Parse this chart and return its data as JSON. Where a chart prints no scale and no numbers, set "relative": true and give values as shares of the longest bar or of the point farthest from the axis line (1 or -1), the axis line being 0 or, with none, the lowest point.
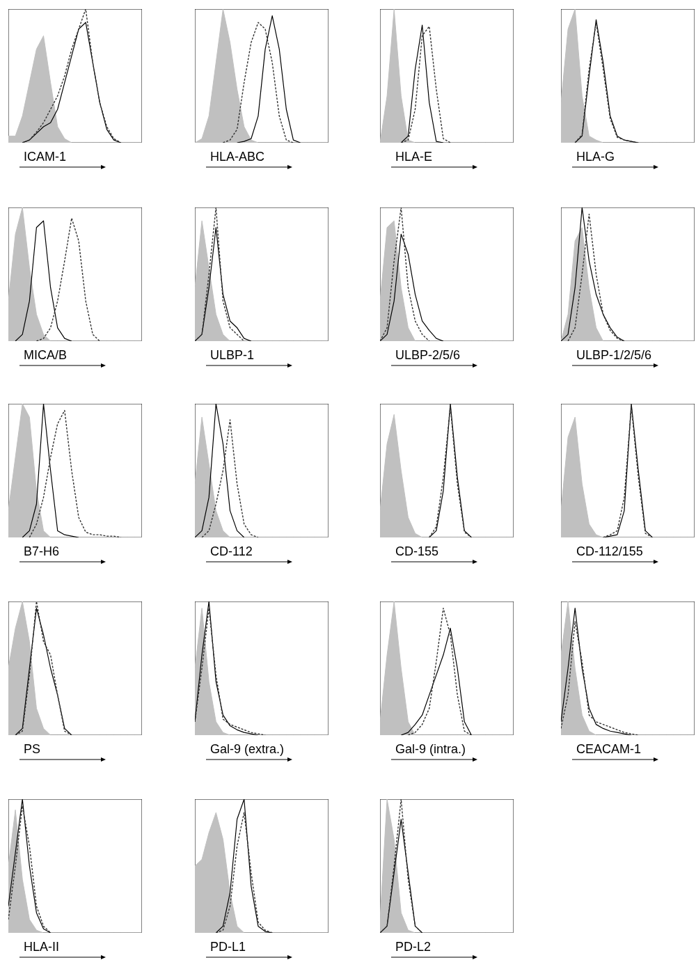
{
  "chart_data": [
    {
      "type": "line",
      "xlabel": "ICAM-1",
      "relative": true,
      "marker": "none",
      "categories": [
        null,
        null,
        null,
        null,
        null,
        null,
        null,
        null,
        null,
        null,
        null,
        null,
        null,
        null,
        null,
        null,
        null,
        null,
        null,
        null
      ],
      "series": [
        {
          "type": "area",
          "color": "#c0c0c0",
          "values": [
            0.05,
            0.05,
            0.2,
            0.45,
            0.7,
            0.8,
            0.45,
            0.12,
            0.03,
            0,
            0,
            0,
            0,
            0,
            0,
            0,
            0,
            0,
            0,
            0
          ]
        },
        {
          "type": "line",
          "color": "#000000",
          "line_style": "solid",
          "values": [
            null,
            null,
            0,
            0.02,
            0.07,
            0.12,
            0.15,
            0.25,
            0.45,
            0.65,
            0.85,
            0.9,
            0.6,
            0.3,
            0.1,
            0.02,
            0,
            null,
            null,
            null
          ]
        },
        {
          "type": "line",
          "color": "#333333",
          "line_style": "dashed",
          "values": [
            null,
            null,
            0,
            0.02,
            0.08,
            0.15,
            0.25,
            0.35,
            0.5,
            0.7,
            0.85,
            1,
            0.6,
            0.3,
            0.12,
            0.03,
            0,
            null,
            null,
            null
          ]
        }
      ]
    },
    {
      "type": "line",
      "xlabel": "HLA-ABC",
      "relative": true,
      "marker": "none",
      "categories": [
        null,
        null,
        null,
        null,
        null,
        null,
        null,
        null,
        null,
        null,
        null,
        null,
        null,
        null,
        null,
        null,
        null,
        null,
        null,
        null
      ],
      "series": [
        {
          "type": "area",
          "color": "#c0c0c0",
          "values": [
            0,
            0.03,
            0.2,
            0.6,
            1,
            0.75,
            0.4,
            0.12,
            0.02,
            0,
            0,
            0,
            0,
            0,
            0,
            0,
            0,
            0,
            0,
            0
          ]
        },
        {
          "type": "line",
          "color": "#000000",
          "line_style": "solid",
          "values": [
            null,
            null,
            null,
            null,
            null,
            null,
            0,
            0.01,
            0.03,
            0.2,
            0.7,
            0.95,
            0.7,
            0.25,
            0.02,
            0,
            null,
            null,
            null,
            null
          ]
        },
        {
          "type": "line",
          "color": "#333333",
          "line_style": "dashed",
          "values": [
            null,
            null,
            null,
            null,
            0,
            0.02,
            0.1,
            0.45,
            0.75,
            0.9,
            0.85,
            0.6,
            0.2,
            0.02,
            0,
            null,
            null,
            null,
            null,
            null
          ]
        }
      ]
    },
    {
      "type": "line",
      "xlabel": "HLA-E",
      "relative": true,
      "marker": "none",
      "categories": [
        null,
        null,
        null,
        null,
        null,
        null,
        null,
        null,
        null,
        null,
        null,
        null,
        null,
        null,
        null,
        null,
        null,
        null,
        null,
        null
      ],
      "series": [
        {
          "type": "area",
          "color": "#c0c0c0",
          "values": [
            0,
            0.35,
            1,
            0.35,
            0.02,
            0,
            0,
            0,
            0,
            0,
            0,
            0,
            0,
            0,
            0,
            0,
            0,
            0,
            0,
            0
          ]
        },
        {
          "type": "line",
          "color": "#000000",
          "line_style": "solid",
          "values": [
            null,
            null,
            null,
            0,
            0.05,
            0.55,
            0.88,
            0.3,
            0.01,
            0,
            null,
            null,
            null,
            null,
            null,
            null,
            null,
            null,
            null,
            null
          ]
        },
        {
          "type": "line",
          "color": "#333333",
          "line_style": "dashed",
          "values": [
            null,
            null,
            null,
            0,
            0.02,
            0.25,
            0.8,
            0.87,
            0.4,
            0.03,
            0,
            null,
            null,
            null,
            null,
            null,
            null,
            null,
            null,
            null
          ]
        }
      ]
    },
    {
      "type": "line",
      "xlabel": "HLA-G",
      "relative": true,
      "marker": "none",
      "categories": [
        null,
        null,
        null,
        null,
        null,
        null,
        null,
        null,
        null,
        null,
        null,
        null,
        null,
        null,
        null,
        null,
        null,
        null,
        null,
        null
      ],
      "series": [
        {
          "type": "area",
          "color": "#c0c0c0",
          "values": [
            0.3,
            0.85,
            1,
            0.35,
            0.05,
            0.02,
            0,
            0,
            0,
            0,
            0,
            0,
            0,
            0,
            0,
            0,
            0,
            0,
            0,
            0
          ]
        },
        {
          "type": "line",
          "color": "#000000",
          "line_style": "solid",
          "values": [
            null,
            null,
            0,
            0.05,
            0.5,
            0.92,
            0.6,
            0.2,
            0.05,
            0.02,
            0.01,
            0,
            null,
            null,
            null,
            null,
            null,
            null,
            null,
            null
          ]
        },
        {
          "type": "line",
          "color": "#333333",
          "line_style": "dashed",
          "values": [
            null,
            null,
            0,
            0.06,
            0.55,
            0.9,
            0.55,
            0.18,
            0.04,
            0.02,
            0.01,
            0,
            null,
            null,
            null,
            null,
            null,
            null,
            null,
            null
          ]
        }
      ]
    },
    {
      "type": "line",
      "xlabel": "MICA/B",
      "relative": true,
      "marker": "none",
      "categories": [
        null,
        null,
        null,
        null,
        null,
        null,
        null,
        null,
        null,
        null,
        null,
        null,
        null,
        null,
        null,
        null,
        null,
        null,
        null,
        null
      ],
      "series": [
        {
          "type": "area",
          "color": "#c0c0c0",
          "values": [
            0.3,
            0.8,
            1,
            0.55,
            0.2,
            0.05,
            0,
            0,
            0,
            0,
            0,
            0,
            0,
            0,
            0,
            0,
            0,
            0,
            0,
            0
          ]
        },
        {
          "type": "line",
          "color": "#000000",
          "line_style": "solid",
          "values": [
            null,
            0,
            0.05,
            0.3,
            0.85,
            0.9,
            0.4,
            0.1,
            0.02,
            0,
            null,
            null,
            null,
            null,
            null,
            null,
            null,
            null,
            null,
            null
          ]
        },
        {
          "type": "line",
          "color": "#333333",
          "line_style": "dashed",
          "values": [
            null,
            null,
            null,
            null,
            0,
            0.02,
            0.1,
            0.3,
            0.6,
            0.92,
            0.75,
            0.3,
            0.05,
            0,
            null,
            null,
            null,
            null,
            null,
            null
          ]
        }
      ]
    },
    {
      "type": "line",
      "xlabel": "ULBP-1",
      "relative": true,
      "marker": "none",
      "categories": [
        null,
        null,
        null,
        null,
        null,
        null,
        null,
        null,
        null,
        null,
        null,
        null,
        null,
        null,
        null,
        null,
        null,
        null,
        null,
        null
      ],
      "series": [
        {
          "type": "area",
          "color": "#c0c0c0",
          "values": [
            0.4,
            0.9,
            0.55,
            0.2,
            0.05,
            0,
            0,
            0,
            0,
            0,
            0,
            0,
            0,
            0,
            0,
            0,
            0,
            0,
            0,
            0
          ]
        },
        {
          "type": "line",
          "color": "#000000",
          "line_style": "solid",
          "values": [
            0,
            0.05,
            0.4,
            0.85,
            0.35,
            0.15,
            0.1,
            0.02,
            0,
            null,
            null,
            null,
            null,
            null,
            null,
            null,
            null,
            null,
            null,
            null
          ]
        },
        {
          "type": "line",
          "color": "#333333",
          "line_style": "dashed",
          "values": [
            0,
            0.05,
            0.5,
            1,
            0.3,
            0.1,
            0.05,
            0,
            null,
            null,
            null,
            null,
            null,
            null,
            null,
            null,
            null,
            null,
            null,
            null
          ]
        }
      ]
    },
    {
      "type": "line",
      "xlabel": "ULBP-2/5/6",
      "relative": true,
      "marker": "none",
      "categories": [
        null,
        null,
        null,
        null,
        null,
        null,
        null,
        null,
        null,
        null,
        null,
        null,
        null,
        null,
        null,
        null,
        null,
        null,
        null,
        null
      ],
      "series": [
        {
          "type": "area",
          "color": "#c0c0c0",
          "values": [
            0.3,
            0.85,
            0.9,
            0.4,
            0.1,
            0,
            0,
            0,
            0,
            0,
            0,
            0,
            0,
            0,
            0,
            0,
            0,
            0,
            0,
            0
          ]
        },
        {
          "type": "line",
          "color": "#000000",
          "line_style": "solid",
          "values": [
            0,
            0.05,
            0.3,
            0.8,
            0.65,
            0.35,
            0.15,
            0.08,
            0.02,
            0,
            null,
            null,
            null,
            null,
            null,
            null,
            null,
            null,
            null,
            null
          ]
        },
        {
          "type": "line",
          "color": "#333333",
          "line_style": "dashed",
          "values": [
            0,
            0.1,
            0.6,
            1,
            0.4,
            0.15,
            0.05,
            0,
            null,
            null,
            null,
            null,
            null,
            null,
            null,
            null,
            null,
            null,
            null,
            null
          ]
        }
      ]
    },
    {
      "type": "line",
      "xlabel": "ULBP-1/2/5/6",
      "relative": true,
      "marker": "none",
      "categories": [
        null,
        null,
        null,
        null,
        null,
        null,
        null,
        null,
        null,
        null,
        null,
        null,
        null,
        null,
        null,
        null,
        null,
        null,
        null,
        null
      ],
      "series": [
        {
          "type": "area",
          "color": "#c0c0c0",
          "values": [
            0,
            0.2,
            0.75,
            0.85,
            0.4,
            0.1,
            0,
            0,
            0,
            0,
            0,
            0,
            0,
            0,
            0,
            0,
            0,
            0,
            0,
            0
          ]
        },
        {
          "type": "line",
          "color": "#000000",
          "line_style": "solid",
          "values": [
            0,
            0.05,
            0.4,
            1,
            0.6,
            0.35,
            0.2,
            0.1,
            0.03,
            0,
            null,
            null,
            null,
            null,
            null,
            null,
            null,
            null,
            null,
            null
          ]
        },
        {
          "type": "line",
          "color": "#333333",
          "line_style": "dashed",
          "values": [
            null,
            0,
            0.1,
            0.5,
            0.95,
            0.5,
            0.2,
            0.08,
            0.02,
            0,
            null,
            null,
            null,
            null,
            null,
            null,
            null,
            null,
            null,
            null
          ]
        }
      ]
    },
    {
      "type": "line",
      "xlabel": "B7-H6",
      "relative": true,
      "marker": "none",
      "categories": [
        null,
        null,
        null,
        null,
        null,
        null,
        null,
        null,
        null,
        null,
        null,
        null,
        null,
        null,
        null,
        null,
        null,
        null,
        null,
        null
      ],
      "series": [
        {
          "type": "area",
          "color": "#c0c0c0",
          "values": [
            0.2,
            0.6,
            1,
            0.9,
            0.35,
            0.05,
            0,
            0,
            0,
            0,
            0,
            0,
            0,
            0,
            0,
            0,
            0,
            0,
            0,
            0
          ]
        },
        {
          "type": "line",
          "color": "#000000",
          "line_style": "solid",
          "values": [
            null,
            null,
            0,
            0.05,
            0.25,
            1,
            0.5,
            0.05,
            0.02,
            0.01,
            0,
            null,
            null,
            null,
            null,
            null,
            null,
            null,
            null,
            null
          ]
        },
        {
          "type": "line",
          "color": "#333333",
          "line_style": "dashed",
          "values": [
            null,
            null,
            null,
            0,
            0.1,
            0.3,
            0.6,
            0.85,
            0.95,
            0.5,
            0.15,
            0.04,
            0.02,
            0.02,
            0.01,
            0.01,
            0,
            null,
            null,
            null
          ]
        }
      ]
    },
    {
      "type": "line",
      "xlabel": "CD-112",
      "relative": true,
      "marker": "none",
      "categories": [
        null,
        null,
        null,
        null,
        null,
        null,
        null,
        null,
        null,
        null,
        null,
        null,
        null,
        null,
        null,
        null,
        null,
        null,
        null,
        null
      ],
      "series": [
        {
          "type": "area",
          "color": "#c0c0c0",
          "values": [
            0.4,
            0.9,
            0.55,
            0.2,
            0.05,
            0,
            0,
            0,
            0,
            0,
            0,
            0,
            0,
            0,
            0,
            0,
            0,
            0,
            0,
            0
          ]
        },
        {
          "type": "line",
          "color": "#000000",
          "line_style": "solid",
          "values": [
            0,
            0.05,
            0.3,
            1,
            0.7,
            0.2,
            0.05,
            0,
            null,
            null,
            null,
            null,
            null,
            null,
            null,
            null,
            null,
            null,
            null,
            null
          ]
        },
        {
          "type": "line",
          "color": "#333333",
          "line_style": "dashed",
          "values": [
            null,
            0,
            0.05,
            0.25,
            0.5,
            0.88,
            0.4,
            0.1,
            0.02,
            0,
            null,
            null,
            null,
            null,
            null,
            null,
            null,
            null,
            null,
            null
          ]
        }
      ]
    },
    {
      "type": "line",
      "xlabel": "CD-155",
      "relative": true,
      "marker": "none",
      "categories": [
        null,
        null,
        null,
        null,
        null,
        null,
        null,
        null,
        null,
        null,
        null,
        null,
        null,
        null,
        null,
        null,
        null,
        null,
        null,
        null
      ],
      "series": [
        {
          "type": "area",
          "color": "#c0c0c0",
          "values": [
            0.2,
            0.7,
            0.92,
            0.5,
            0.15,
            0.03,
            0,
            0,
            0,
            0,
            0,
            0,
            0,
            0,
            0,
            0,
            0,
            0,
            0,
            0
          ]
        },
        {
          "type": "line",
          "color": "#000000",
          "line_style": "solid",
          "values": [
            null,
            null,
            null,
            null,
            null,
            null,
            null,
            0,
            0.05,
            0.35,
            1,
            0.45,
            0.05,
            0,
            null,
            null,
            null,
            null,
            null,
            null
          ]
        },
        {
          "type": "line",
          "color": "#333333",
          "line_style": "dashed",
          "values": [
            null,
            null,
            null,
            null,
            null,
            null,
            null,
            0,
            0.08,
            0.45,
            0.98,
            0.4,
            0.04,
            0,
            null,
            null,
            null,
            null,
            null,
            null
          ]
        }
      ]
    },
    {
      "type": "line",
      "xlabel": "CD-112/155",
      "relative": true,
      "marker": "none",
      "categories": [
        null,
        null,
        null,
        null,
        null,
        null,
        null,
        null,
        null,
        null,
        null,
        null,
        null,
        null,
        null,
        null,
        null,
        null,
        null,
        null
      ],
      "series": [
        {
          "type": "area",
          "color": "#c0c0c0",
          "values": [
            0.2,
            0.75,
            0.9,
            0.4,
            0.1,
            0.02,
            0,
            0,
            0,
            0,
            0,
            0,
            0,
            0,
            0,
            0,
            0,
            0,
            0,
            0
          ]
        },
        {
          "type": "line",
          "color": "#000000",
          "line_style": "solid",
          "values": [
            null,
            null,
            null,
            null,
            null,
            null,
            0,
            0.01,
            0.02,
            0.2,
            1,
            0.5,
            0.05,
            0,
            null,
            null,
            null,
            null,
            null,
            null
          ]
        },
        {
          "type": "line",
          "color": "#333333",
          "line_style": "dashed",
          "values": [
            null,
            null,
            null,
            null,
            null,
            null,
            0,
            0.02,
            0.05,
            0.3,
            0.98,
            0.45,
            0.03,
            0,
            null,
            null,
            null,
            null,
            null,
            null
          ]
        }
      ]
    },
    {
      "type": "line",
      "xlabel": "PS",
      "relative": true,
      "marker": "none",
      "categories": [
        null,
        null,
        null,
        null,
        null,
        null,
        null,
        null,
        null,
        null,
        null,
        null,
        null,
        null,
        null,
        null,
        null,
        null,
        null,
        null
      ],
      "series": [
        {
          "type": "area",
          "color": "#c0c0c0",
          "values": [
            0.5,
            0.8,
            1,
            0.7,
            0.2,
            0.05,
            0,
            0,
            0,
            0,
            0,
            0,
            0,
            0,
            0,
            0,
            0,
            0,
            0,
            0
          ]
        },
        {
          "type": "line",
          "color": "#000000",
          "line_style": "solid",
          "values": [
            null,
            0,
            0.05,
            0.5,
            0.95,
            0.75,
            0.5,
            0.3,
            0.05,
            0,
            null,
            null,
            null,
            null,
            null,
            null,
            null,
            null,
            null,
            null
          ]
        },
        {
          "type": "line",
          "color": "#333333",
          "line_style": "dashed",
          "values": [
            null,
            0,
            0.03,
            0.45,
            1,
            0.7,
            0.6,
            0.3,
            0.03,
            0,
            null,
            null,
            null,
            null,
            null,
            null,
            null,
            null,
            null,
            null
          ]
        }
      ]
    },
    {
      "type": "line",
      "xlabel": "Gal-9 (extra.)",
      "relative": true,
      "marker": "none",
      "categories": [
        null,
        null,
        null,
        null,
        null,
        null,
        null,
        null,
        null,
        null,
        null,
        null,
        null,
        null,
        null,
        null,
        null,
        null,
        null,
        null
      ],
      "series": [
        {
          "type": "area",
          "color": "#c0c0c0",
          "values": [
            0.5,
            0.95,
            0.4,
            0.1,
            0.02,
            0,
            0,
            0,
            0,
            0,
            0,
            0,
            0,
            0,
            0,
            0,
            0,
            0,
            0,
            0
          ]
        },
        {
          "type": "line",
          "color": "#000000",
          "line_style": "solid",
          "values": [
            0.1,
            0.6,
            1,
            0.4,
            0.15,
            0.07,
            0.04,
            0.02,
            0.01,
            0,
            null,
            null,
            null,
            null,
            null,
            null,
            null,
            null,
            null,
            null
          ]
        },
        {
          "type": "line",
          "color": "#333333",
          "line_style": "dashed",
          "values": [
            0.1,
            0.5,
            0.95,
            0.45,
            0.12,
            0.08,
            0.06,
            0.04,
            0.02,
            0.01,
            0,
            null,
            null,
            null,
            null,
            null,
            null,
            null,
            null,
            null
          ]
        }
      ]
    },
    {
      "type": "line",
      "xlabel": "Gal-9 (intra.)",
      "relative": true,
      "marker": "none",
      "categories": [
        null,
        null,
        null,
        null,
        null,
        null,
        null,
        null,
        null,
        null,
        null,
        null,
        null,
        null,
        null,
        null,
        null,
        null,
        null,
        null
      ],
      "series": [
        {
          "type": "area",
          "color": "#c0c0c0",
          "values": [
            0.1,
            0.6,
            1,
            0.5,
            0.1,
            0,
            0,
            0,
            0,
            0,
            0,
            0,
            0,
            0,
            0,
            0,
            0,
            0,
            0,
            0
          ]
        },
        {
          "type": "line",
          "color": "#000000",
          "line_style": "solid",
          "values": [
            null,
            null,
            null,
            0,
            0.02,
            0.08,
            0.15,
            0.3,
            0.45,
            0.6,
            0.8,
            0.5,
            0.1,
            0,
            null,
            null,
            null,
            null,
            null,
            null
          ]
        },
        {
          "type": "line",
          "color": "#333333",
          "line_style": "dashed",
          "values": [
            null,
            null,
            null,
            null,
            0,
            0.02,
            0.08,
            0.2,
            0.55,
            0.95,
            0.75,
            0.3,
            0.03,
            0,
            null,
            null,
            null,
            null,
            null,
            null
          ]
        }
      ]
    },
    {
      "type": "line",
      "xlabel": "CEACAM-1",
      "relative": true,
      "marker": "none",
      "categories": [
        null,
        null,
        null,
        null,
        null,
        null,
        null,
        null,
        null,
        null,
        null,
        null,
        null,
        null,
        null,
        null,
        null,
        null,
        null,
        null
      ],
      "series": [
        {
          "type": "area",
          "color": "#c0c0c0",
          "values": [
            0.6,
            1,
            0.5,
            0.15,
            0.03,
            0,
            0,
            0,
            0,
            0,
            0,
            0,
            0,
            0,
            0,
            0,
            0,
            0,
            0,
            0
          ]
        },
        {
          "type": "line",
          "color": "#000000",
          "line_style": "solid",
          "values": [
            0.1,
            0.5,
            0.95,
            0.5,
            0.2,
            0.08,
            0.05,
            0.03,
            0.02,
            0.01,
            0,
            null,
            null,
            null,
            null,
            null,
            null,
            null,
            null,
            null
          ]
        },
        {
          "type": "line",
          "color": "#333333",
          "line_style": "dashed",
          "values": [
            0.05,
            0.3,
            0.85,
            0.55,
            0.15,
            0.1,
            0.08,
            0.06,
            0.04,
            0.02,
            0.01,
            0,
            null,
            null,
            null,
            null,
            null,
            null,
            null,
            null
          ]
        }
      ]
    },
    {
      "type": "line",
      "xlabel": "HLA-II",
      "relative": true,
      "marker": "none",
      "categories": [
        null,
        null,
        null,
        null,
        null,
        null,
        null,
        null,
        null,
        null,
        null,
        null,
        null,
        null,
        null,
        null,
        null,
        null,
        null,
        null
      ],
      "series": [
        {
          "type": "area",
          "color": "#c0c0c0",
          "values": [
            0.5,
            0.92,
            0.4,
            0.1,
            0.02,
            0,
            0,
            0,
            0,
            0,
            0,
            0,
            0,
            0,
            0,
            0,
            0,
            0,
            0,
            0
          ]
        },
        {
          "type": "line",
          "color": "#000000",
          "line_style": "solid",
          "values": [
            0.2,
            0.6,
            1,
            0.5,
            0.15,
            0.03,
            0,
            null,
            null,
            null,
            null,
            null,
            null,
            null,
            null,
            null,
            null,
            null,
            null,
            null
          ]
        },
        {
          "type": "line",
          "color": "#333333",
          "line_style": "dashed",
          "values": [
            0.1,
            0.5,
            0.95,
            0.65,
            0.2,
            0.05,
            0,
            null,
            null,
            null,
            null,
            null,
            null,
            null,
            null,
            null,
            null,
            null,
            null,
            null
          ]
        }
      ]
    },
    {
      "type": "line",
      "xlabel": "PD-L1",
      "relative": true,
      "marker": "none",
      "categories": [
        null,
        null,
        null,
        null,
        null,
        null,
        null,
        null,
        null,
        null,
        null,
        null,
        null,
        null,
        null,
        null,
        null,
        null,
        null,
        null
      ],
      "series": [
        {
          "type": "area",
          "color": "#c0c0c0",
          "values": [
            0.5,
            0.55,
            0.75,
            0.9,
            0.7,
            0.3,
            0.05,
            0,
            0,
            0,
            0,
            0,
            0,
            0,
            0,
            0,
            0,
            0,
            0,
            0
          ]
        },
        {
          "type": "line",
          "color": "#000000",
          "line_style": "solid",
          "values": [
            null,
            null,
            null,
            0,
            0.05,
            0.3,
            0.85,
            1,
            0.35,
            0.05,
            0.01,
            0,
            null,
            null,
            null,
            null,
            null,
            null,
            null,
            null
          ]
        },
        {
          "type": "line",
          "color": "#333333",
          "line_style": "dashed",
          "values": [
            null,
            null,
            null,
            0,
            0.02,
            0.2,
            0.65,
            0.9,
            0.45,
            0.08,
            0.02,
            0,
            null,
            null,
            null,
            null,
            null,
            null,
            null,
            null
          ]
        }
      ]
    },
    {
      "type": "line",
      "xlabel": "PD-L2",
      "relative": true,
      "marker": "none",
      "categories": [
        null,
        null,
        null,
        null,
        null,
        null,
        null,
        null,
        null,
        null,
        null,
        null,
        null,
        null,
        null,
        null,
        null,
        null,
        null,
        null
      ],
      "series": [
        {
          "type": "area",
          "color": "#c0c0c0",
          "values": [
            0.1,
            1,
            0.7,
            0.15,
            0.02,
            0,
            0,
            0,
            0,
            0,
            0,
            0,
            0,
            0,
            0,
            0,
            0,
            0,
            0,
            0
          ]
        },
        {
          "type": "line",
          "color": "#000000",
          "line_style": "solid",
          "values": [
            0,
            0.05,
            0.45,
            0.85,
            0.45,
            0.05,
            0,
            null,
            null,
            null,
            null,
            null,
            null,
            null,
            null,
            null,
            null,
            null,
            null,
            null
          ]
        },
        {
          "type": "line",
          "color": "#333333",
          "line_style": "dashed",
          "values": [
            0,
            0.05,
            0.5,
            1,
            0.4,
            0.05,
            0,
            null,
            null,
            null,
            null,
            null,
            null,
            null,
            null,
            null,
            null,
            null,
            null,
            null
          ]
        }
      ]
    }
  ]
}
